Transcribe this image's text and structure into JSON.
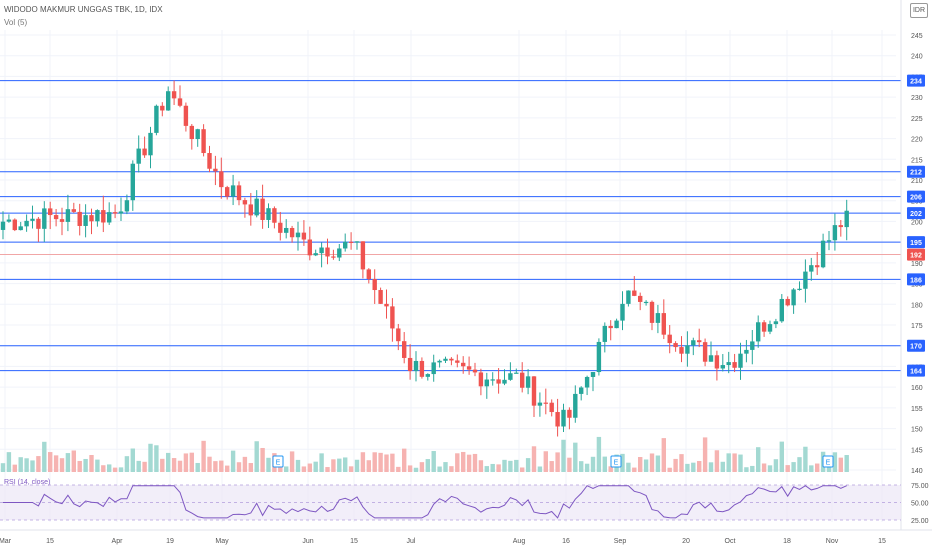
{
  "header": {
    "title": "WIDODO MAKMUR UNGGAS TBK, 1D, IDX",
    "volume_label": "Vol (5)",
    "currency": "IDR"
  },
  "rsi": {
    "label": "RSI (14, close)",
    "levels": [
      "75.00",
      "50.00",
      "25.00"
    ]
  },
  "colors": {
    "up": "#26a69a",
    "down": "#ef5350",
    "level": "#2962ff",
    "rsi": "#7e57c2",
    "label_bg": "#2962ff",
    "last_bg": "#ef5350"
  },
  "chart_data": {
    "type": "candlestick",
    "y_axis": {
      "ticks": [
        245,
        240,
        235,
        230,
        225,
        220,
        215,
        210,
        205,
        200,
        195,
        190,
        185,
        180,
        175,
        170,
        165,
        160,
        155,
        150,
        145,
        140
      ],
      "range": [
        138,
        248
      ]
    },
    "x_axis": {
      "labels": [
        "Mar",
        "15",
        "Apr",
        "19",
        "May",
        "Jun",
        "15",
        "Jul",
        "Aug",
        "16",
        "Sep",
        "20",
        "Oct",
        "18",
        "Nov",
        "15"
      ]
    },
    "horizontal_levels": [
      234,
      212,
      206,
      202,
      195,
      186,
      170,
      164
    ],
    "last_price": 192,
    "earnings_markers": [
      "E",
      "E",
      "E"
    ],
    "anchors": [
      [
        "Mar",
        200
      ],
      [
        "15",
        201
      ],
      [
        "Apr",
        202
      ],
      [
        "19",
        232
      ],
      [
        "May",
        209
      ],
      [
        "Jun",
        194
      ],
      [
        "15",
        194
      ],
      [
        "Jul",
        165
      ],
      [
        "Aug",
        162
      ],
      [
        "16",
        151
      ],
      [
        "Sep",
        183
      ],
      [
        "20",
        170
      ],
      [
        "Oct",
        166
      ],
      [
        "18",
        182
      ],
      [
        "Nov",
        200
      ]
    ]
  }
}
